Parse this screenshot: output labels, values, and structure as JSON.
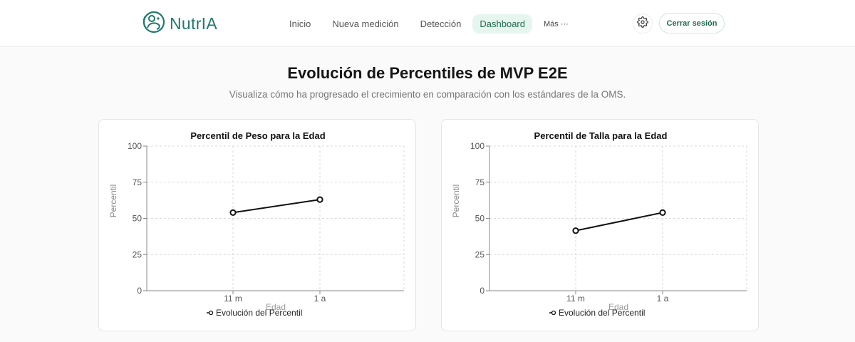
{
  "header": {
    "logo_text": "NutrIA",
    "nav": [
      {
        "label": "Inicio",
        "active": false
      },
      {
        "label": "Nueva medición",
        "active": false
      },
      {
        "label": "Detección",
        "active": false
      },
      {
        "label": "Dashboard",
        "active": true
      },
      {
        "label": "Más ···",
        "active": false
      }
    ],
    "settings_icon": "gear-icon",
    "logout_label": "Cerrar sesión"
  },
  "page": {
    "title": "Evolución de Percentiles de MVP E2E",
    "subtitle": "Visualiza cómo ha progresado el crecimiento en comparación con los estándares de la OMS."
  },
  "colors": {
    "brand": "#1f7a6e",
    "active_nav_bg": "#e6f5ee",
    "line": "#111111"
  },
  "chart_data": [
    {
      "type": "line",
      "title": "Percentil de Peso para la Edad",
      "xlabel": "Edad",
      "ylabel": "Percentil",
      "categories": [
        "11 m",
        "1 a"
      ],
      "series": [
        {
          "name": "Evolución del Percentil",
          "values": [
            54,
            63
          ]
        }
      ],
      "ylim": [
        0,
        100
      ],
      "yticks": [
        "0",
        "25",
        "50",
        "75",
        "100"
      ],
      "grid": true,
      "legend": "bottom"
    },
    {
      "type": "line",
      "title": "Percentil de Talla para la Edad",
      "xlabel": "Edad",
      "ylabel": "Percentil",
      "categories": [
        "11 m",
        "1 a"
      ],
      "series": [
        {
          "name": "Evolución del Percentil",
          "values": [
            41.5,
            54
          ]
        }
      ],
      "ylim": [
        0,
        100
      ],
      "yticks": [
        "0",
        "25",
        "50",
        "75",
        "100"
      ],
      "grid": true,
      "legend": "bottom"
    }
  ]
}
